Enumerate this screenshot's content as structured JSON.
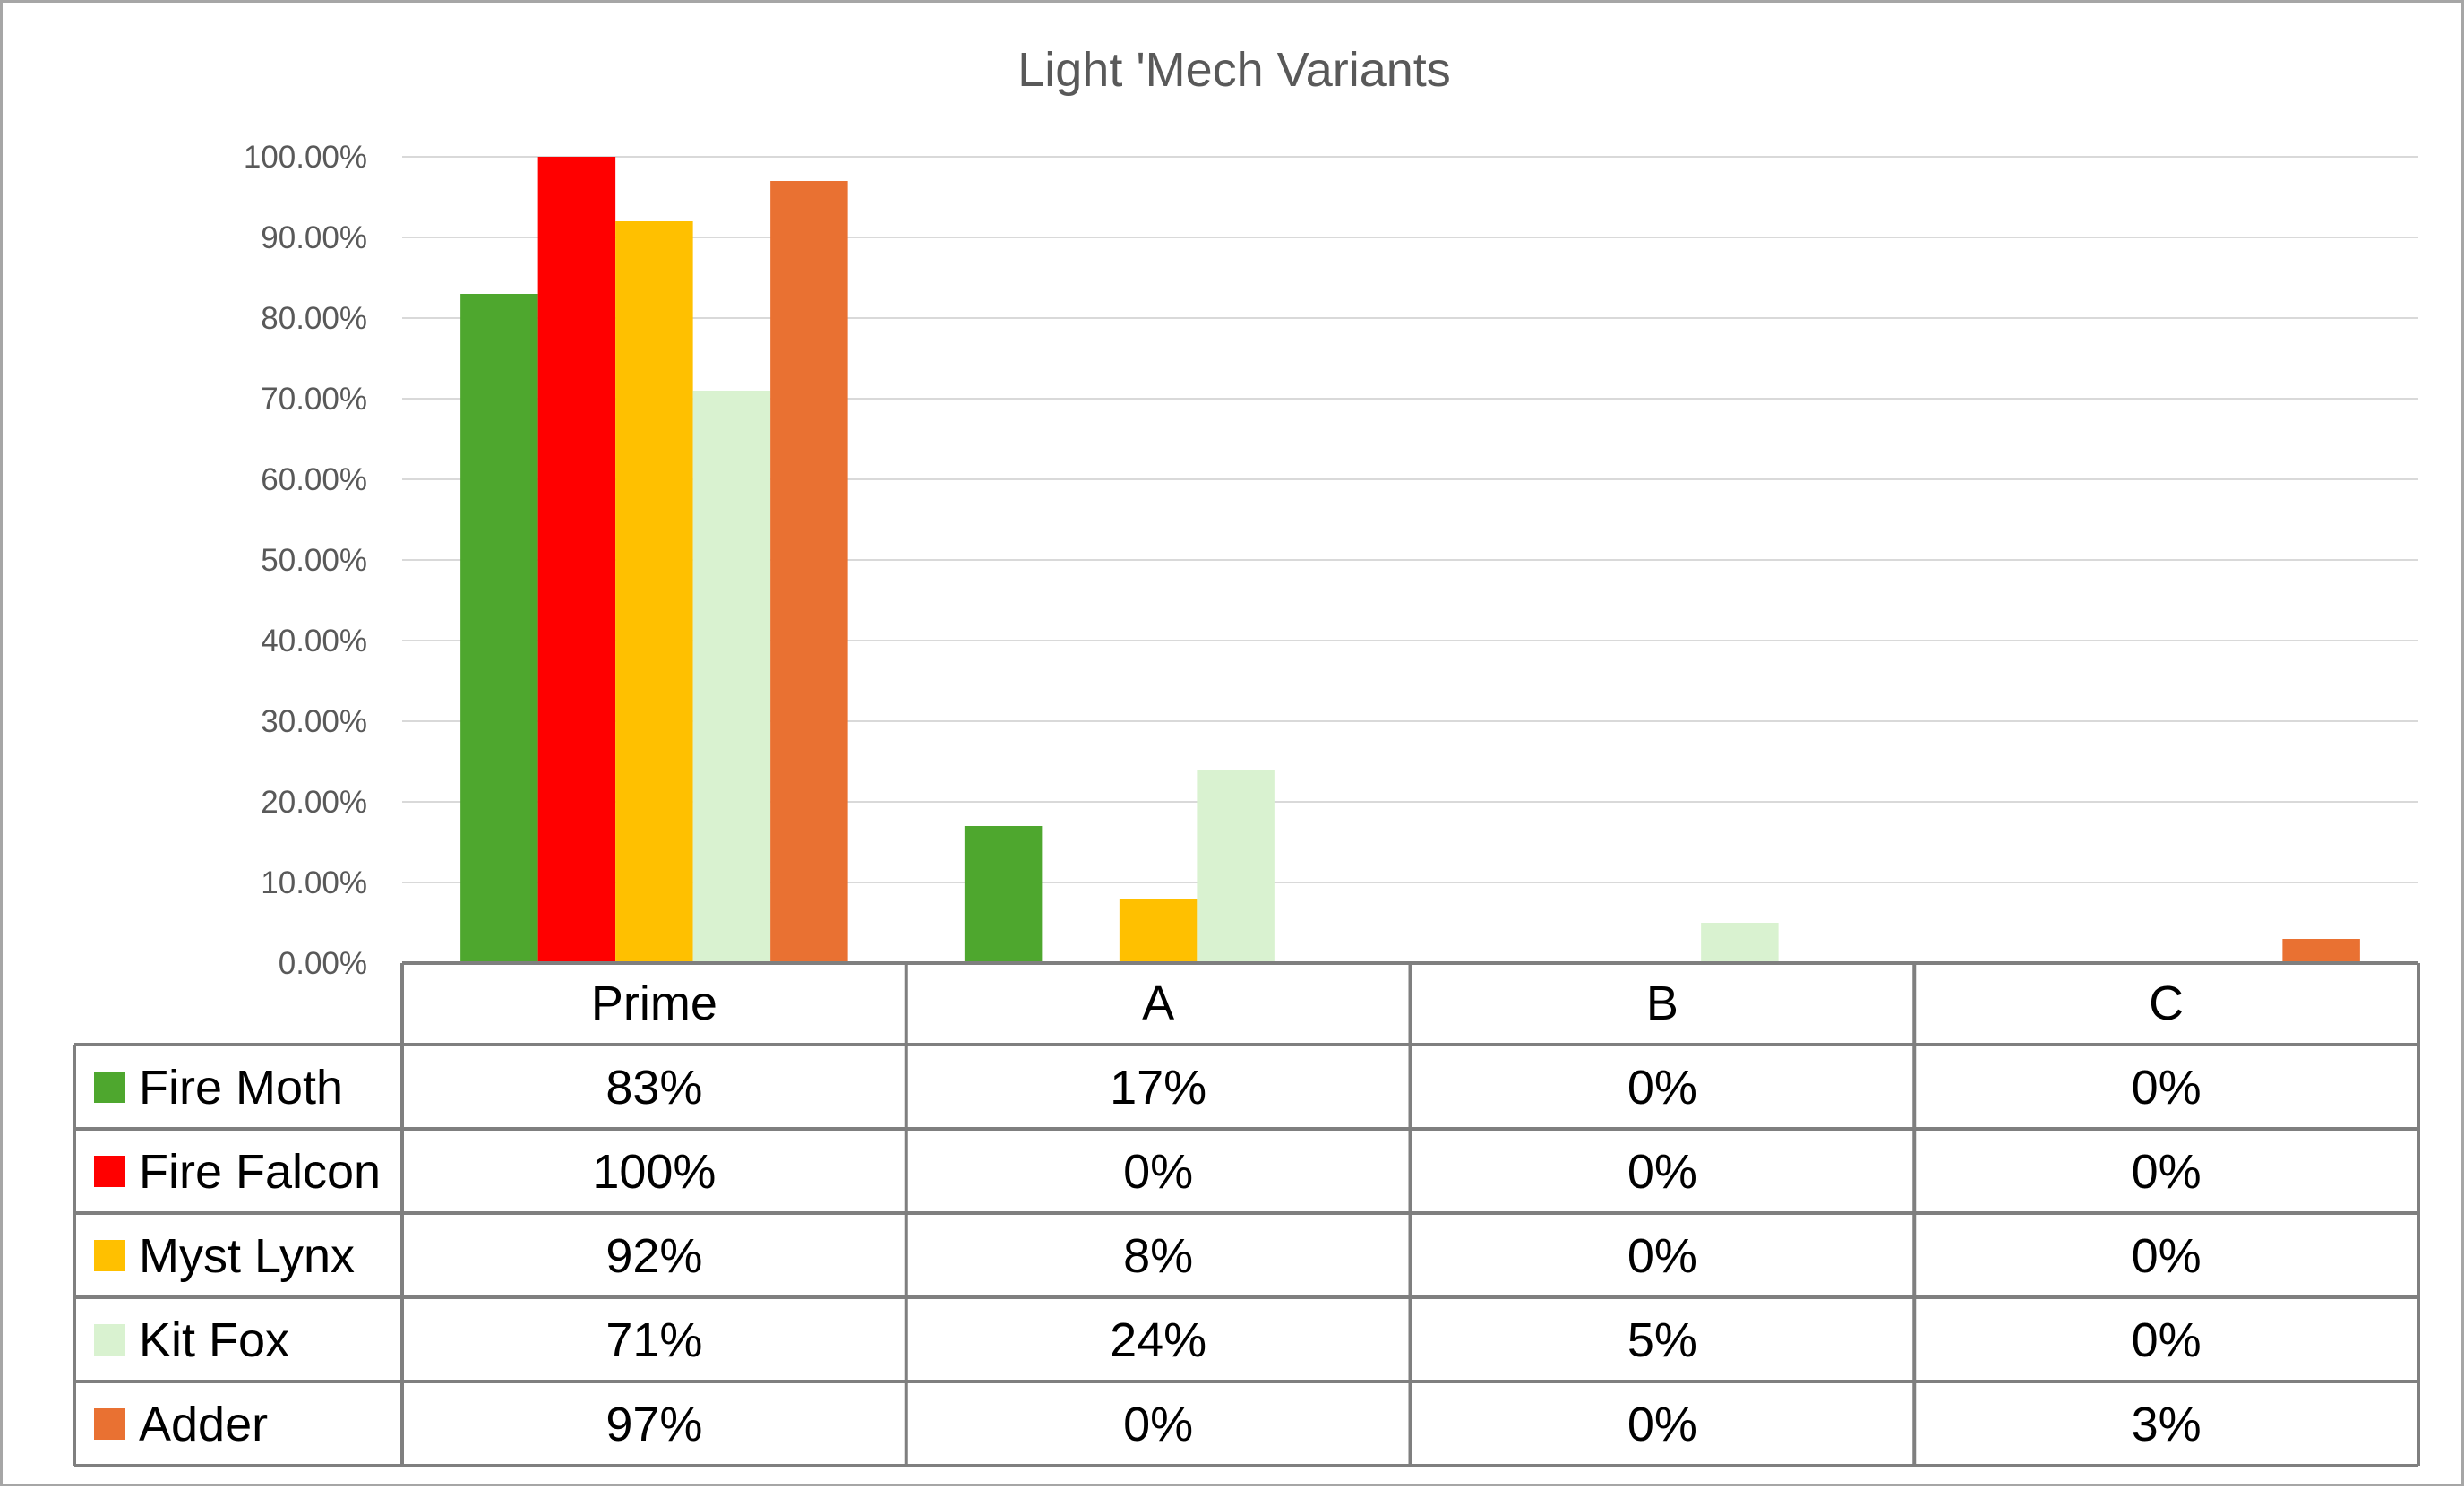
{
  "chart_data": {
    "type": "bar",
    "title": "Light 'Mech Variants",
    "categories": [
      "Prime",
      "A",
      "B",
      "C"
    ],
    "series": [
      {
        "name": "Fire Moth",
        "color": "#4ea72e",
        "values": [
          0.83,
          0.17,
          0.0,
          0.0
        ],
        "labels": [
          "83%",
          "17%",
          "0%",
          "0%"
        ]
      },
      {
        "name": "Fire Falcon",
        "color": "#ff0000",
        "values": [
          1.0,
          0.0,
          0.0,
          0.0
        ],
        "labels": [
          "100%",
          "0%",
          "0%",
          "0%"
        ]
      },
      {
        "name": "Myst Lynx",
        "color": "#ffc000",
        "values": [
          0.92,
          0.08,
          0.0,
          0.0
        ],
        "labels": [
          "92%",
          "8%",
          "0%",
          "0%"
        ]
      },
      {
        "name": "Kit Fox",
        "color": "#d9f2d0",
        "values": [
          0.71,
          0.24,
          0.05,
          0.0
        ],
        "labels": [
          "71%",
          "24%",
          "5%",
          "0%"
        ]
      },
      {
        "name": "Adder",
        "color": "#e97132",
        "values": [
          0.97,
          0.0,
          0.0,
          0.03
        ],
        "labels": [
          "97%",
          "0%",
          "0%",
          "3%"
        ]
      }
    ],
    "yaxis": {
      "ticks": [
        0,
        0.1,
        0.2,
        0.3,
        0.4,
        0.5,
        0.6,
        0.7,
        0.8,
        0.9,
        1.0
      ],
      "tick_labels": [
        "0.00%",
        "10.00%",
        "20.00%",
        "30.00%",
        "40.00%",
        "50.00%",
        "60.00%",
        "70.00%",
        "80.00%",
        "90.00%",
        "100.00%"
      ],
      "ylim": [
        0,
        1.0
      ]
    },
    "grid": true,
    "legend": "data-table",
    "xlabel": "",
    "ylabel": ""
  },
  "colors": {
    "grid": "#d9d9d9",
    "table_border": "#7f7f7f",
    "frame": "#a6a6a6",
    "axis_text": "#595959"
  }
}
